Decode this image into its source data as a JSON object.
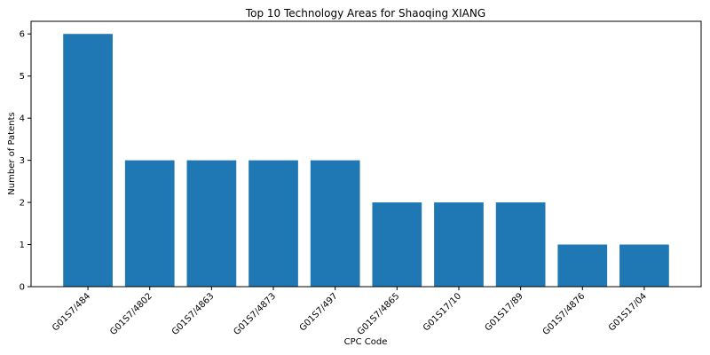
{
  "chart_data": {
    "type": "bar",
    "title": "Top 10 Technology Areas for Shaoqing XIANG",
    "xlabel": "CPC Code",
    "ylabel": "Number of Patents",
    "categories": [
      "G01S7/484",
      "G01S7/4802",
      "G01S7/4863",
      "G01S7/4873",
      "G01S7/497",
      "G01S7/4865",
      "G01S17/10",
      "G01S17/89",
      "G01S7/4876",
      "G01S17/04"
    ],
    "values": [
      6,
      3,
      3,
      3,
      3,
      2,
      2,
      2,
      1,
      1
    ],
    "ylim": [
      0,
      6.3
    ],
    "yticks": [
      0,
      1,
      2,
      3,
      4,
      5,
      6
    ],
    "grid": false,
    "bar_color": "#1f77b4",
    "legend": "none"
  }
}
